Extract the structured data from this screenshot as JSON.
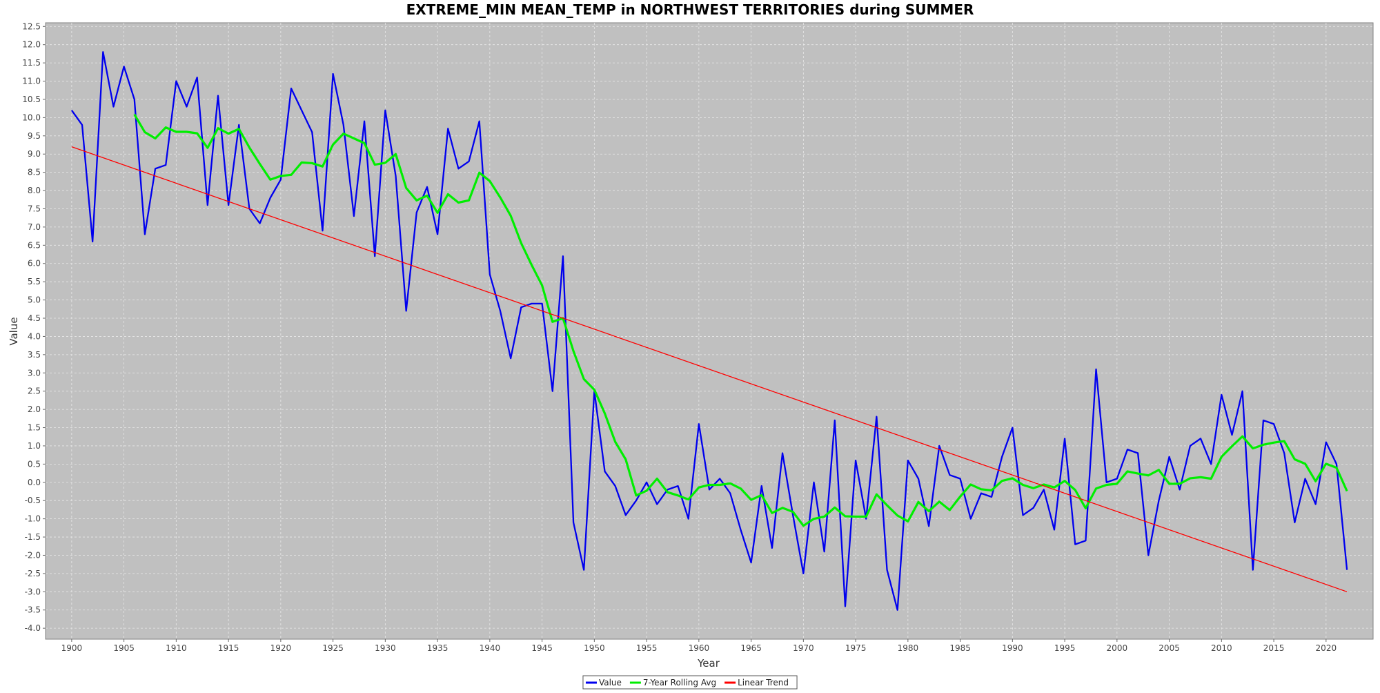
{
  "chart_data": {
    "type": "line",
    "title": "EXTREME_MIN MEAN_TEMP in NORTHWEST TERRITORIES during SUMMER",
    "xlabel": "Year",
    "ylabel": "Value",
    "xlim": [
      1897.5,
      2024.5
    ],
    "ylim": [
      -4.3,
      12.6
    ],
    "xticks": [
      1900,
      1905,
      1910,
      1915,
      1920,
      1925,
      1930,
      1935,
      1940,
      1945,
      1950,
      1955,
      1960,
      1965,
      1970,
      1975,
      1980,
      1985,
      1990,
      1995,
      2000,
      2005,
      2010,
      2015,
      2020
    ],
    "yticks": [
      -4.0,
      -3.5,
      -3.0,
      -2.5,
      -2.0,
      -1.5,
      -1.0,
      -0.5,
      0.0,
      0.5,
      1.0,
      1.5,
      2.0,
      2.5,
      3.0,
      3.5,
      4.0,
      4.5,
      5.0,
      5.5,
      6.0,
      6.5,
      7.0,
      7.5,
      8.0,
      8.5,
      9.0,
      9.5,
      10.0,
      10.5,
      11.0,
      11.5,
      12.0,
      12.5
    ],
    "grid": true,
    "legend_position": "bottom",
    "colors": {
      "plot_background": "#c0c0c0",
      "grid": "#e8e8e8"
    },
    "series": [
      {
        "name": "Value",
        "color": "#0000ee",
        "x_start": 1900,
        "values": [
          10.2,
          9.8,
          6.6,
          11.8,
          10.3,
          11.4,
          10.5,
          6.8,
          8.6,
          8.7,
          11.0,
          10.3,
          11.1,
          7.6,
          10.6,
          7.6,
          9.8,
          7.5,
          7.1,
          7.8,
          8.3,
          10.8,
          10.2,
          9.6,
          6.9,
          11.2,
          9.8,
          7.3,
          9.9,
          6.2,
          10.2,
          8.4,
          4.7,
          7.4,
          8.1,
          6.8,
          9.7,
          8.6,
          8.8,
          9.9,
          5.7,
          4.7,
          3.4,
          4.8,
          4.9,
          4.9,
          2.5,
          6.2,
          -1.1,
          -2.4,
          2.5,
          0.3,
          -0.1,
          -0.9,
          -0.5,
          0.0,
          -0.6,
          -0.2,
          -0.1,
          -1.0,
          1.6,
          -0.2,
          0.1,
          -0.3,
          -1.3,
          -2.2,
          -0.1,
          -1.8,
          0.8,
          -0.9,
          -2.5,
          0.0,
          -1.9,
          1.7,
          -3.4,
          0.6,
          -1.0,
          1.8,
          -2.4,
          -3.5,
          0.6,
          0.1,
          -1.2,
          1.0,
          0.2,
          0.1,
          -1.0,
          -0.3,
          -0.4,
          0.7,
          1.5,
          -0.9,
          -0.7,
          -0.2,
          -1.3,
          1.2,
          -1.7,
          -1.6,
          3.1,
          0.0,
          0.1,
          0.9,
          0.8,
          -2.0,
          -0.5,
          0.7,
          -0.2,
          1.0,
          1.2,
          0.5,
          2.4,
          1.3,
          2.5,
          -2.4,
          1.7,
          1.6,
          0.8,
          -1.1,
          0.1,
          -0.6,
          1.1,
          0.5,
          -2.4
        ]
      },
      {
        "name": "7-Year Rolling Avg",
        "color": "#00ee00",
        "x_start": 1906,
        "values": [
          10.09,
          9.6,
          9.43,
          9.73,
          9.61,
          9.61,
          9.57,
          9.17,
          9.71,
          9.56,
          9.69,
          9.18,
          8.73,
          8.3,
          8.4,
          8.43,
          8.77,
          8.75,
          8.66,
          9.26,
          9.56,
          9.43,
          9.3,
          8.71,
          8.76,
          9.0,
          8.07,
          7.73,
          7.86,
          7.39,
          7.9,
          7.67,
          7.73,
          8.49,
          8.26,
          7.81,
          7.31,
          6.56,
          5.96,
          5.4,
          4.4,
          4.5,
          3.6,
          2.83,
          2.54,
          1.89,
          1.11,
          0.63,
          -0.36,
          -0.23,
          0.1,
          -0.27,
          -0.36,
          -0.47,
          -0.14,
          -0.07,
          -0.07,
          -0.03,
          -0.17,
          -0.48,
          -0.35,
          -0.84,
          -0.7,
          -0.81,
          -1.19,
          -1.0,
          -0.94,
          -0.69,
          -0.93,
          -0.94,
          -0.94,
          -0.33,
          -0.63,
          -0.91,
          -1.07,
          -0.54,
          -0.79,
          -0.53,
          -0.76,
          -0.39,
          -0.06,
          -0.19,
          -0.22,
          0.04,
          0.11,
          -0.07,
          -0.16,
          -0.06,
          -0.14,
          0.04,
          -0.21,
          -0.71,
          -0.17,
          -0.07,
          -0.04,
          0.3,
          0.24,
          0.19,
          0.34,
          -0.04,
          -0.04,
          0.11,
          0.14,
          0.1,
          0.7,
          0.99,
          1.26,
          0.93,
          1.03,
          1.09,
          1.13,
          0.63,
          0.51,
          0.03,
          0.51,
          0.4,
          -0.24
        ]
      },
      {
        "name": "Linear Trend",
        "color": "#ff0000",
        "x": [
          1900,
          2022
        ],
        "values": [
          9.2,
          -3.0
        ]
      }
    ]
  }
}
